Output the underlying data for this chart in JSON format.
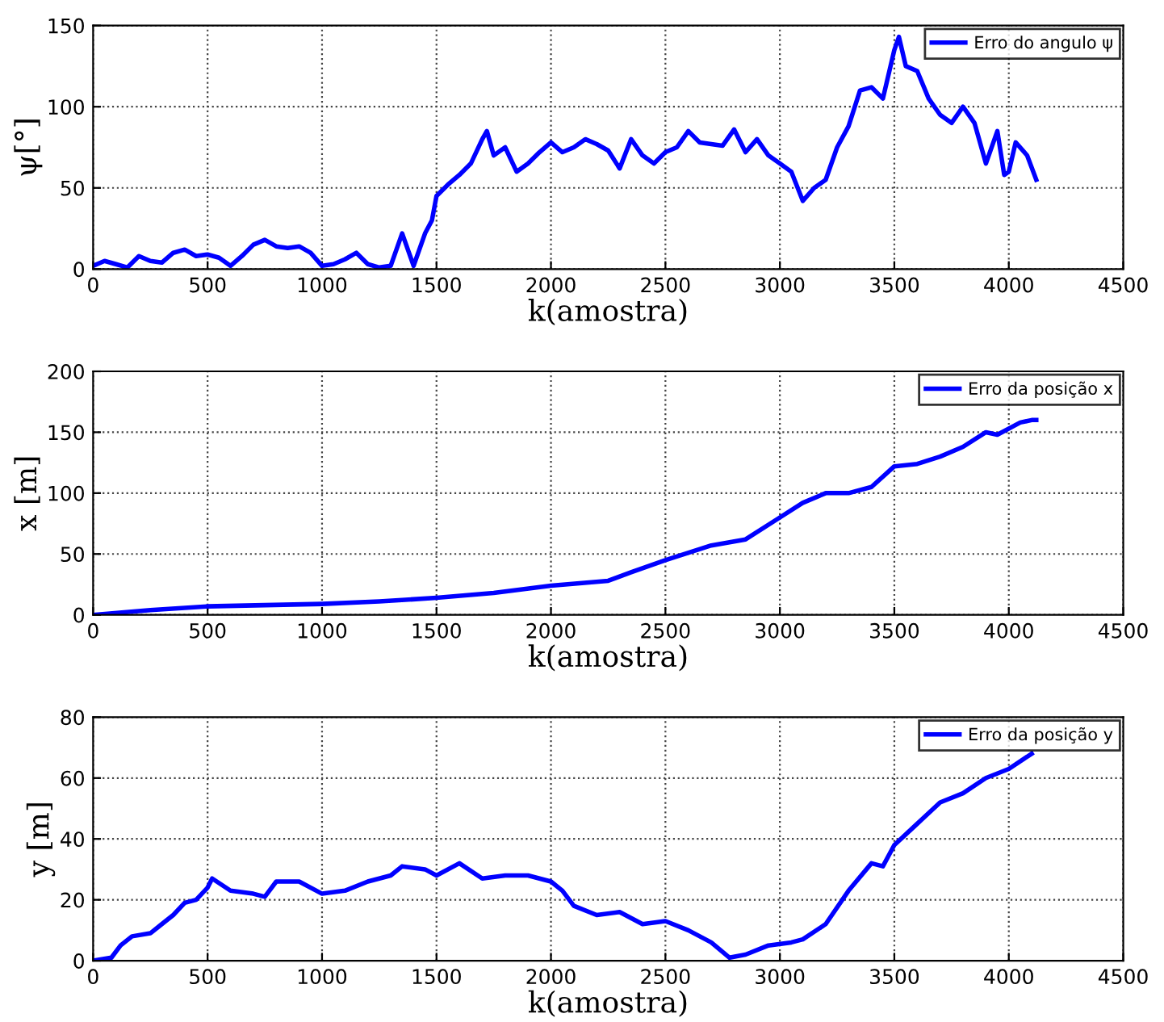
{
  "chart_data": [
    {
      "type": "line",
      "xlabel": "k(amostra)",
      "ylabel": "ψ[°]",
      "xlim": [
        0,
        4500
      ],
      "xticks": [
        0,
        500,
        1000,
        1500,
        2000,
        2500,
        3000,
        3500,
        4000,
        4500
      ],
      "ylim": [
        0,
        150
      ],
      "yticks": [
        0,
        50,
        100,
        150
      ],
      "grid": true,
      "legend": "top right",
      "line_style": "solid",
      "series": [
        {
          "name": "Erro do angulo ψ",
          "color": "#0000ff",
          "x": [
            0,
            50,
            100,
            150,
            200,
            250,
            300,
            350,
            400,
            450,
            500,
            550,
            600,
            650,
            700,
            750,
            800,
            850,
            900,
            950,
            1000,
            1050,
            1100,
            1150,
            1200,
            1250,
            1300,
            1350,
            1400,
            1450,
            1480,
            1500,
            1550,
            1600,
            1650,
            1700,
            1720,
            1750,
            1800,
            1850,
            1900,
            1950,
            2000,
            2050,
            2100,
            2150,
            2200,
            2250,
            2300,
            2350,
            2400,
            2450,
            2500,
            2550,
            2600,
            2650,
            2700,
            2750,
            2800,
            2850,
            2900,
            2950,
            3000,
            3050,
            3100,
            3150,
            3200,
            3250,
            3300,
            3350,
            3400,
            3450,
            3500,
            3520,
            3550,
            3600,
            3650,
            3700,
            3750,
            3800,
            3850,
            3900,
            3950,
            3980,
            4000,
            4030,
            4080,
            4120
          ],
          "values": [
            2,
            5,
            3,
            1,
            8,
            5,
            4,
            10,
            12,
            8,
            9,
            7,
            2,
            8,
            15,
            18,
            14,
            13,
            14,
            10,
            2,
            3,
            6,
            10,
            3,
            1,
            2,
            22,
            2,
            22,
            30,
            45,
            52,
            58,
            65,
            80,
            85,
            70,
            75,
            60,
            65,
            72,
            78,
            72,
            75,
            80,
            77,
            73,
            62,
            80,
            70,
            65,
            72,
            75,
            85,
            78,
            77,
            76,
            86,
            72,
            80,
            70,
            65,
            60,
            42,
            50,
            55,
            75,
            88,
            110,
            112,
            105,
            135,
            143,
            125,
            122,
            105,
            95,
            90,
            100,
            90,
            65,
            85,
            58,
            60,
            78,
            70,
            55
          ]
        }
      ]
    },
    {
      "type": "line",
      "xlabel": "k(amostra)",
      "ylabel": "x [m]",
      "xlim": [
        0,
        4500
      ],
      "xticks": [
        0,
        500,
        1000,
        1500,
        2000,
        2500,
        3000,
        3500,
        4000,
        4500
      ],
      "ylim": [
        0,
        200
      ],
      "yticks": [
        0,
        50,
        100,
        150,
        200
      ],
      "grid": true,
      "legend": "top right",
      "line_style": "solid",
      "series": [
        {
          "name": "Erro da posição x",
          "color": "#0000ff",
          "x": [
            0,
            250,
            500,
            750,
            1000,
            1250,
            1500,
            1750,
            2000,
            2250,
            2350,
            2500,
            2700,
            2850,
            3000,
            3100,
            3200,
            3300,
            3400,
            3500,
            3600,
            3700,
            3800,
            3900,
            3950,
            4050,
            4100,
            4120
          ],
          "values": [
            0,
            4,
            7,
            8,
            9,
            11,
            14,
            18,
            24,
            28,
            35,
            45,
            57,
            62,
            80,
            92,
            100,
            100,
            105,
            122,
            124,
            130,
            138,
            150,
            148,
            158,
            160,
            160
          ]
        }
      ]
    },
    {
      "type": "line",
      "xlabel": "k(amostra)",
      "ylabel": "y [m]",
      "xlim": [
        0,
        4500
      ],
      "xticks": [
        0,
        500,
        1000,
        1500,
        2000,
        2500,
        3000,
        3500,
        4000,
        4500
      ],
      "ylim": [
        0,
        80
      ],
      "yticks": [
        0,
        20,
        40,
        60,
        80
      ],
      "grid": true,
      "legend": "top right",
      "line_style": "solid",
      "series": [
        {
          "name": "Erro da posição y",
          "color": "#0000ff",
          "x": [
            0,
            80,
            120,
            170,
            250,
            300,
            350,
            400,
            450,
            500,
            520,
            600,
            700,
            750,
            800,
            900,
            1000,
            1100,
            1200,
            1300,
            1350,
            1450,
            1500,
            1600,
            1700,
            1800,
            1900,
            2000,
            2050,
            2100,
            2200,
            2300,
            2400,
            2500,
            2600,
            2700,
            2780,
            2850,
            2950,
            3050,
            3100,
            3200,
            3300,
            3400,
            3450,
            3500,
            3600,
            3700,
            3800,
            3900,
            4000,
            4100
          ],
          "values": [
            0,
            1,
            5,
            8,
            9,
            12,
            15,
            19,
            20,
            24,
            27,
            23,
            22,
            21,
            26,
            26,
            22,
            23,
            26,
            28,
            31,
            30,
            28,
            32,
            27,
            28,
            28,
            26,
            23,
            18,
            15,
            16,
            12,
            13,
            10,
            6,
            1,
            2,
            5,
            6,
            7,
            12,
            23,
            32,
            31,
            38,
            45,
            52,
            55,
            60,
            63,
            68
          ]
        }
      ]
    }
  ]
}
